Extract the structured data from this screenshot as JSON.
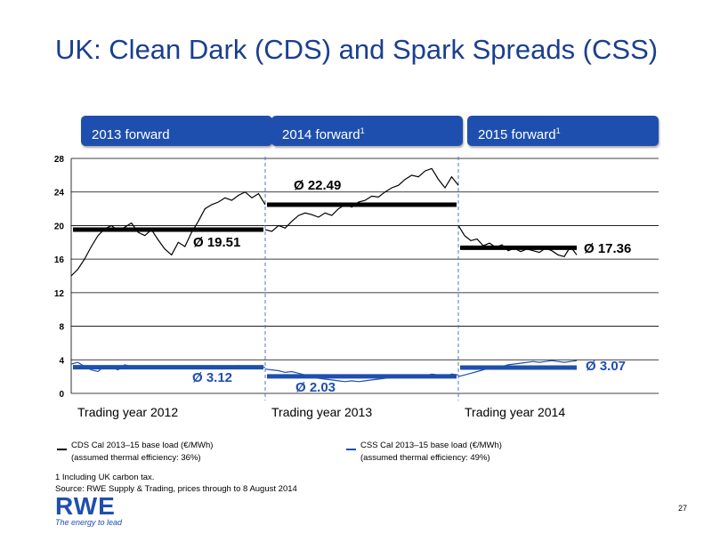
{
  "title": "UK: Clean Dark (CDS) and Spark Spreads (CSS)",
  "periods": [
    {
      "label": "2013 forward",
      "sup": ""
    },
    {
      "label": "2014 forward",
      "sup": "1"
    },
    {
      "label": "2015 forward",
      "sup": "1"
    }
  ],
  "colors": {
    "cds": "#000000",
    "css": "#1f4fae",
    "accent": "#1f4fae",
    "title": "#1a3f8f"
  },
  "chart_data": {
    "type": "line",
    "ylim": [
      0,
      28
    ],
    "yticks": [
      0,
      4,
      8,
      12,
      16,
      20,
      24,
      28
    ],
    "trading_years": [
      "Trading year 2012",
      "Trading year 2013",
      "Trading year 2014"
    ],
    "series": [
      {
        "name": "CDS Cal 2013–15 base load (€/MWh)",
        "periods": [
          [
            14.0,
            14.8,
            16.0,
            17.5,
            18.8,
            19.6,
            20.0,
            19.4,
            19.8,
            20.3,
            19.2,
            18.8,
            19.5,
            18.3,
            17.2,
            16.5,
            18.0,
            17.5,
            19.2,
            20.5,
            22.0,
            22.5,
            22.8,
            23.3,
            23.0,
            23.6,
            24.0,
            23.3,
            23.8,
            22.5
          ],
          [
            19.5,
            19.3,
            20.0,
            19.7,
            20.5,
            21.2,
            21.5,
            21.3,
            21.0,
            21.5,
            21.2,
            22.0,
            22.5,
            22.2,
            22.8,
            23.0,
            23.5,
            23.4,
            24.0,
            24.5,
            24.8,
            25.5,
            26.0,
            25.8,
            26.5,
            26.8,
            25.5,
            24.5,
            25.8,
            24.8
          ],
          [
            20.0,
            18.8,
            18.2,
            18.4,
            17.6,
            17.9,
            17.4,
            17.7,
            17.0,
            17.3,
            16.9,
            17.2,
            17.0,
            16.8,
            17.3,
            17.0,
            16.5,
            16.3,
            17.5,
            16.5
          ]
        ],
        "averages": [
          19.51,
          22.49,
          17.36
        ],
        "average_labels": [
          "Ø 19.51",
          "Ø 22.49",
          "Ø 17.36"
        ]
      },
      {
        "name": "CSS Cal 2013–15 base load (€/MWh)",
        "periods": [
          [
            3.5,
            3.7,
            3.2,
            2.8,
            2.6,
            3.3,
            3.1,
            2.8,
            3.4,
            3.2,
            3.0,
            3.3,
            3.1,
            3.2,
            3.0,
            3.3,
            3.2,
            3.1,
            3.3,
            3.2,
            3.1,
            3.3,
            3.2,
            3.1,
            3.2,
            3.3,
            3.2,
            3.1,
            3.2,
            3.1
          ],
          [
            2.9,
            2.8,
            2.7,
            2.5,
            2.6,
            2.4,
            2.2,
            2.0,
            1.8,
            1.7,
            1.6,
            1.5,
            1.4,
            1.5,
            1.4,
            1.5,
            1.6,
            1.7,
            1.8,
            1.9,
            2.0,
            2.1,
            2.0,
            2.2,
            2.1,
            2.3,
            2.2,
            2.0,
            2.3,
            2.2
          ],
          [
            2.0,
            2.2,
            2.4,
            2.6,
            2.8,
            3.0,
            3.1,
            3.2,
            3.4,
            3.5,
            3.6,
            3.7,
            3.8,
            3.7,
            3.8,
            3.9,
            3.8,
            3.7,
            3.8,
            3.9
          ]
        ],
        "averages": [
          3.12,
          2.03,
          3.07
        ],
        "average_labels": [
          "Ø 3.12",
          "Ø 2.03",
          "Ø 3.07"
        ]
      }
    ]
  },
  "legend": {
    "cds_line1": "CDS Cal 2013–15 base load (€/MWh)",
    "cds_line2": "(assumed thermal efficiency: 36%)",
    "css_line1": "CSS Cal 2013–15 base load (€/MWh)",
    "css_line2": "(assumed thermal efficiency: 49%)"
  },
  "footnote": {
    "line1": "1 Including UK carbon tax.",
    "line2": "Source: RWE Supply & Trading, prices through to 8 August 2014"
  },
  "page_number": "27",
  "logo": {
    "name": "RWE",
    "tagline": "The energy to lead"
  }
}
